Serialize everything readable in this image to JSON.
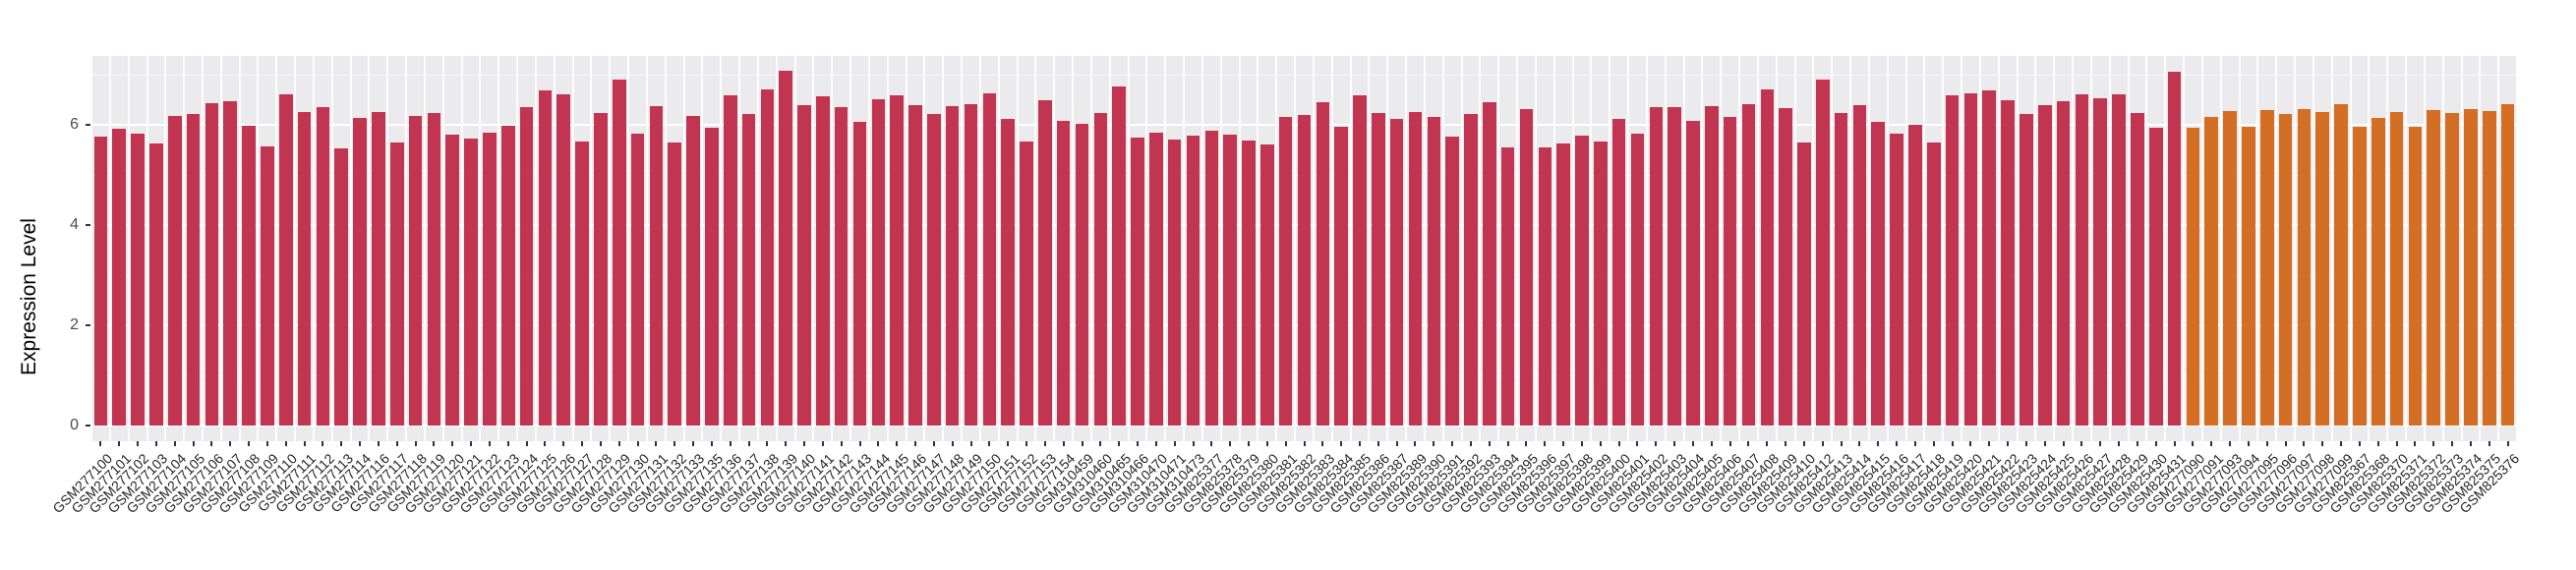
{
  "chart_data": {
    "type": "bar",
    "title": "",
    "xlabel": "",
    "ylabel": "Expression Level",
    "ylim": [
      0,
      7.42
    ],
    "yticks": [
      0,
      2,
      4,
      6
    ],
    "grid": "white major and minor horizontal lines plus vertical slot lines on gray panel",
    "legend_position": "none",
    "panel_bg": "#ebebed",
    "tick_color": "#333333",
    "axis_text_color": "#4d4d4d",
    "group_colors": [
      "#c23550",
      "#d46e24"
    ],
    "categories": [
      "GSM277100",
      "GSM277101",
      "GSM277102",
      "GSM277103",
      "GSM277104",
      "GSM277105",
      "GSM277106",
      "GSM277107",
      "GSM277108",
      "GSM277109",
      "GSM277110",
      "GSM277111",
      "GSM277112",
      "GSM277113",
      "GSM277114",
      "GSM277116",
      "GSM277117",
      "GSM277118",
      "GSM277119",
      "GSM277120",
      "GSM277121",
      "GSM277122",
      "GSM277123",
      "GSM277124",
      "GSM277125",
      "GSM277126",
      "GSM277127",
      "GSM277128",
      "GSM277129",
      "GSM277130",
      "GSM277131",
      "GSM277132",
      "GSM277133",
      "GSM277135",
      "GSM277136",
      "GSM277137",
      "GSM277138",
      "GSM277139",
      "GSM277140",
      "GSM277141",
      "GSM277142",
      "GSM277143",
      "GSM277144",
      "GSM277145",
      "GSM277146",
      "GSM277147",
      "GSM277148",
      "GSM277149",
      "GSM277150",
      "GSM277151",
      "GSM277152",
      "GSM277153",
      "GSM277154",
      "GSM310459",
      "GSM310460",
      "GSM310465",
      "GSM310466",
      "GSM310470",
      "GSM310471",
      "GSM310473",
      "GSM825377",
      "GSM825378",
      "GSM825379",
      "GSM825380",
      "GSM825381",
      "GSM825382",
      "GSM825383",
      "GSM825384",
      "GSM825385",
      "GSM825386",
      "GSM825387",
      "GSM825389",
      "GSM825390",
      "GSM825391",
      "GSM825392",
      "GSM825393",
      "GSM825394",
      "GSM825395",
      "GSM825396",
      "GSM825397",
      "GSM825398",
      "GSM825399",
      "GSM825400",
      "GSM825401",
      "GSM825402",
      "GSM825403",
      "GSM825404",
      "GSM825405",
      "GSM825406",
      "GSM825407",
      "GSM825408",
      "GSM825409",
      "GSM825410",
      "GSM825412",
      "GSM825413",
      "GSM825414",
      "GSM825415",
      "GSM825416",
      "GSM825417",
      "GSM825418",
      "GSM825419",
      "GSM825420",
      "GSM825421",
      "GSM825422",
      "GSM825423",
      "GSM825424",
      "GSM825425",
      "GSM825426",
      "GSM825427",
      "GSM825428",
      "GSM825429",
      "GSM825430",
      "GSM825431",
      "GSM277090",
      "GSM277091",
      "GSM277093",
      "GSM277094",
      "GSM277095",
      "GSM277096",
      "GSM277097",
      "GSM277098",
      "GSM277099",
      "GSM825367",
      "GSM825368",
      "GSM825370",
      "GSM825371",
      "GSM825372",
      "GSM825373",
      "GSM825374",
      "GSM825375",
      "GSM825376"
    ],
    "values": [
      5.77,
      5.93,
      5.82,
      5.62,
      6.17,
      6.21,
      6.44,
      6.47,
      5.99,
      5.56,
      6.6,
      6.25,
      6.35,
      5.54,
      6.14,
      6.26,
      5.64,
      6.17,
      6.23,
      5.81,
      5.72,
      5.85,
      5.98,
      6.36,
      6.68,
      6.6,
      5.67,
      6.24,
      6.91,
      5.82,
      6.38,
      5.64,
      6.17,
      5.94,
      6.59,
      6.22,
      6.7,
      7.07,
      6.4,
      6.56,
      6.35,
      6.06,
      6.51,
      6.58,
      6.39,
      6.21,
      6.37,
      6.41,
      6.63,
      6.12,
      5.66,
      6.49,
      6.08,
      6.02,
      6.24,
      6.76,
      5.74,
      5.85,
      5.7,
      5.78,
      5.89,
      5.81,
      5.69,
      5.6,
      6.16,
      6.2,
      6.45,
      5.97,
      6.59,
      6.24,
      6.12,
      6.26,
      6.16,
      5.76,
      6.21,
      6.46,
      5.55,
      6.32,
      5.55,
      5.62,
      5.78,
      5.67,
      6.12,
      5.82,
      6.36,
      6.35,
      6.07,
      6.38,
      6.16,
      6.42,
      6.7,
      6.34,
      5.64,
      6.91,
      6.24,
      6.4,
      6.05,
      5.82,
      6.0,
      5.64,
      6.58,
      6.62,
      6.69,
      6.5,
      6.21,
      6.39,
      6.48,
      6.6,
      6.54,
      6.61,
      6.23,
      5.94,
      7.06,
      5.95,
      6.15,
      6.27,
      5.97,
      6.29,
      6.22,
      6.32,
      6.26,
      6.41,
      5.96,
      6.14,
      6.26,
      5.97,
      6.3,
      6.24,
      6.31,
      6.27,
      6.41
    ],
    "groups": [
      0,
      0,
      0,
      0,
      0,
      0,
      0,
      0,
      0,
      0,
      0,
      0,
      0,
      0,
      0,
      0,
      0,
      0,
      0,
      0,
      0,
      0,
      0,
      0,
      0,
      0,
      0,
      0,
      0,
      0,
      0,
      0,
      0,
      0,
      0,
      0,
      0,
      0,
      0,
      0,
      0,
      0,
      0,
      0,
      0,
      0,
      0,
      0,
      0,
      0,
      0,
      0,
      0,
      0,
      0,
      0,
      0,
      0,
      0,
      0,
      0,
      0,
      0,
      0,
      0,
      0,
      0,
      0,
      0,
      0,
      0,
      0,
      0,
      0,
      0,
      0,
      0,
      0,
      0,
      0,
      0,
      0,
      0,
      0,
      0,
      0,
      0,
      0,
      0,
      0,
      0,
      0,
      0,
      0,
      0,
      0,
      0,
      0,
      0,
      0,
      0,
      0,
      0,
      0,
      0,
      0,
      0,
      0,
      0,
      0,
      0,
      0,
      0,
      1,
      1,
      1,
      1,
      1,
      1,
      1,
      1,
      1,
      1,
      1,
      1,
      1,
      1,
      1,
      1,
      1,
      1
    ]
  }
}
